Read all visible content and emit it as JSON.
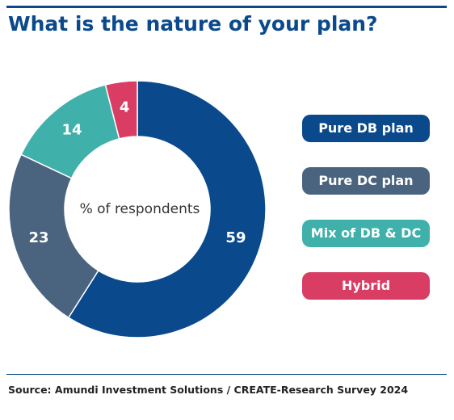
{
  "title": "What is the nature of your plan?",
  "source": "Source: Amundi Investment Solutions / CREATE-Research Survey 2024",
  "chart_data": {
    "type": "pie",
    "donut": true,
    "center_label": "% of respondents",
    "categories": [
      "Pure DB plan",
      "Pure DC plan",
      "Mix of DB & DC",
      "Hybrid"
    ],
    "values": [
      59,
      23,
      14,
      4
    ],
    "colors": [
      "#0a4a8c",
      "#4a6480",
      "#40b0aa",
      "#d93d64"
    ],
    "legend_position": "right"
  }
}
